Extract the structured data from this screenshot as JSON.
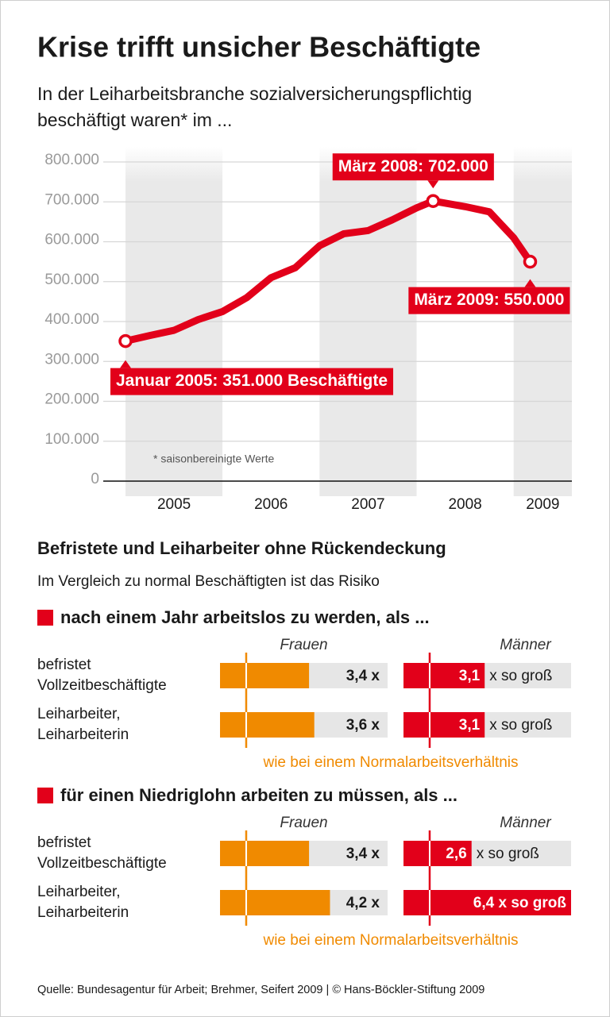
{
  "header": {
    "title": "Krise trifft unsicher Beschäftigte",
    "subtitle": [
      "In der Leiharbeitsbranche sozialversicherungspflichtig",
      "beschäftigt waren* im ..."
    ]
  },
  "chart_data": [
    {
      "type": "line",
      "x": [
        2005,
        2005.25,
        2005.5,
        2005.75,
        2006,
        2006.25,
        2006.5,
        2006.75,
        2007,
        2007.25,
        2007.5,
        2007.75,
        2008,
        2008.17,
        2008.5,
        2008.75,
        2009,
        2009.17
      ],
      "values": [
        351000,
        365000,
        378000,
        405000,
        425000,
        460000,
        510000,
        535000,
        590000,
        620000,
        628000,
        655000,
        685000,
        702000,
        688000,
        675000,
        610000,
        550000
      ],
      "value_labels": [
        "Januar 2005: 351.000 Beschäftigte",
        null,
        null,
        null,
        null,
        null,
        null,
        null,
        null,
        null,
        null,
        null,
        null,
        "März 2008: 702.000",
        null,
        null,
        null,
        "März 2009: 550.000"
      ],
      "color": "#e2001a",
      "xlim": [
        2005,
        2009.6
      ],
      "xticks": [
        2005,
        2006,
        2007,
        2008,
        2009
      ],
      "ylim": [
        0,
        800000
      ],
      "yticks": [
        0,
        {
          "value": 100000,
          "label": "100.000"
        },
        {
          "value": 200000,
          "label": "200.000"
        },
        {
          "value": 300000,
          "label": "300.000"
        },
        {
          "value": 400000,
          "label": "400.000"
        },
        {
          "value": 500000,
          "label": "500.000"
        },
        {
          "value": 600000,
          "label": "600.000"
        },
        {
          "value": 700000,
          "label": "700.000"
        },
        {
          "value": 800000,
          "label": "800.000"
        }
      ],
      "grid": true,
      "note": "* saisonbereinigte Werte"
    },
    {
      "type": "bar",
      "orientation": "horizontal",
      "title": "nach einem Jahr arbeitslos zu werden, als ...",
      "categories": [
        [
          "befristet",
          "Vollzeitbeschäftigte"
        ],
        [
          "Leiharbeiter,",
          "Leiharbeiterin"
        ]
      ],
      "series": [
        {
          "name": "Frauen",
          "color": "#f08a00",
          "values": [
            3.4,
            3.6
          ],
          "value_labels": [
            "3,4 x",
            "3,6 x"
          ]
        },
        {
          "name": "Männer",
          "color": "#e2001a",
          "values": [
            3.1,
            3.1
          ],
          "value_labels": [
            "3,1",
            "3,1"
          ],
          "suffix_labels": [
            "x so groß",
            "x so groß"
          ]
        }
      ],
      "xlim": [
        0,
        6.4
      ],
      "reference_line": {
        "value": 1,
        "label": "wie bei einem Normalarbeitsverhältnis"
      }
    },
    {
      "type": "bar",
      "orientation": "horizontal",
      "title": "für einen Niedriglohn arbeiten zu müssen, als ...",
      "categories": [
        [
          "befristet",
          "Vollzeitbeschäftigte"
        ],
        [
          "Leiharbeiter,",
          "Leiharbeiterin"
        ]
      ],
      "series": [
        {
          "name": "Frauen",
          "color": "#f08a00",
          "values": [
            3.4,
            4.2
          ],
          "value_labels": [
            "3,4 x",
            "4,2 x"
          ]
        },
        {
          "name": "Männer",
          "color": "#e2001a",
          "values": [
            2.6,
            6.4
          ],
          "value_labels": [
            "2,6",
            "6,4 x so groß"
          ],
          "suffix_labels": [
            "x so groß",
            null
          ]
        }
      ],
      "xlim": [
        0,
        6.4
      ],
      "reference_line": {
        "value": 1,
        "label": "wie bei einem Normalarbeitsverhältnis"
      }
    }
  ],
  "section": {
    "title": "Befristete und Leiharbeiter ohne Rückendeckung",
    "subtitle": "Im Vergleich zu normal Beschäftigten ist das Risiko"
  },
  "source": "Quelle: Bundesagentur für Arbeit; Brehmer, Seifert 2009 | © Hans-Böckler-Stiftung 2009"
}
